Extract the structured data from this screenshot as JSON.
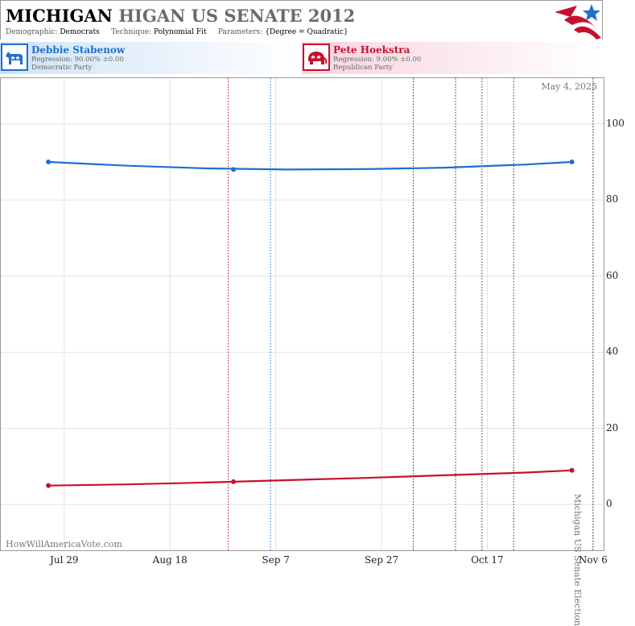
{
  "header": {
    "title_bold": "MICHIGAN",
    "title_grey": "HIGAN US SENATE 2012",
    "demographic_label": "Demographic:",
    "demographic_value": "Democrats",
    "technique_label": "Technique:",
    "technique_value": "Polynomial Fit",
    "parameters_label": "Parameters:",
    "parameters_value": "{Degree = Quadratic}"
  },
  "candidates": [
    {
      "name": "Debbie Stabenow",
      "regression": "Regression: 90.00% ±0.00",
      "party": "Democratic Party",
      "color": "#1d6fd1",
      "icon": "donkey-icon"
    },
    {
      "name": "Pete Hoekstra",
      "regression": "Regression: 9.00% ±0.00",
      "party": "Republican Party",
      "color": "#c8102e",
      "icon": "elephant-icon"
    }
  ],
  "plot": {
    "date_stamp": "May 4, 2025",
    "watermark": "HowWillAmericaVote.com",
    "election_label": "Michigan US Senate Election"
  },
  "chart_data": {
    "type": "line",
    "title": "",
    "xlabel": "",
    "ylabel": "",
    "x_range": [
      "2012-07-17",
      "2012-11-08"
    ],
    "ylim": [
      -12,
      112
    ],
    "x_ticks": [
      {
        "label": "Jul 29",
        "date": "2012-07-29"
      },
      {
        "label": "Aug 18",
        "date": "2012-08-18"
      },
      {
        "label": "Sep 7",
        "date": "2012-09-07"
      },
      {
        "label": "Sep 27",
        "date": "2012-09-27"
      },
      {
        "label": "Oct 17",
        "date": "2012-10-17"
      },
      {
        "label": "Nov 6",
        "date": "2012-11-06"
      }
    ],
    "y_ticks": [
      0,
      20,
      40,
      60,
      80,
      100
    ],
    "grid": true,
    "series": [
      {
        "name": "Debbie Stabenow",
        "color": "#1d6fd1",
        "points": [
          {
            "date": "2012-07-26",
            "value": 90
          },
          {
            "date": "2012-08-30",
            "value": 88
          },
          {
            "date": "2012-11-02",
            "value": 90
          }
        ],
        "fit": [
          {
            "date": "2012-07-26",
            "value": 90.0
          },
          {
            "date": "2012-08-10",
            "value": 89.0
          },
          {
            "date": "2012-08-25",
            "value": 88.3
          },
          {
            "date": "2012-09-09",
            "value": 88.0
          },
          {
            "date": "2012-09-24",
            "value": 88.1
          },
          {
            "date": "2012-10-09",
            "value": 88.5
          },
          {
            "date": "2012-10-24",
            "value": 89.3
          },
          {
            "date": "2012-11-02",
            "value": 90.0
          }
        ]
      },
      {
        "name": "Pete Hoekstra",
        "color": "#c8102e",
        "points": [
          {
            "date": "2012-07-26",
            "value": 5
          },
          {
            "date": "2012-08-30",
            "value": 6
          },
          {
            "date": "2012-11-02",
            "value": 9
          }
        ],
        "fit": [
          {
            "date": "2012-07-26",
            "value": 5.0
          },
          {
            "date": "2012-08-10",
            "value": 5.3
          },
          {
            "date": "2012-08-25",
            "value": 5.8
          },
          {
            "date": "2012-09-09",
            "value": 6.4
          },
          {
            "date": "2012-09-24",
            "value": 7.0
          },
          {
            "date": "2012-10-09",
            "value": 7.7
          },
          {
            "date": "2012-10-24",
            "value": 8.4
          },
          {
            "date": "2012-11-02",
            "value": 9.0
          }
        ]
      }
    ],
    "event_lines": [
      {
        "date": "2012-08-29",
        "color": "#c8102e"
      },
      {
        "date": "2012-09-06",
        "color": "#1d6fd1"
      },
      {
        "date": "2012-10-03",
        "color": "#333333"
      },
      {
        "date": "2012-10-11",
        "color": "#333333"
      },
      {
        "date": "2012-10-16",
        "color": "#333333"
      },
      {
        "date": "2012-10-22",
        "color": "#333333"
      },
      {
        "date": "2012-11-06",
        "color": "#333333"
      }
    ]
  }
}
